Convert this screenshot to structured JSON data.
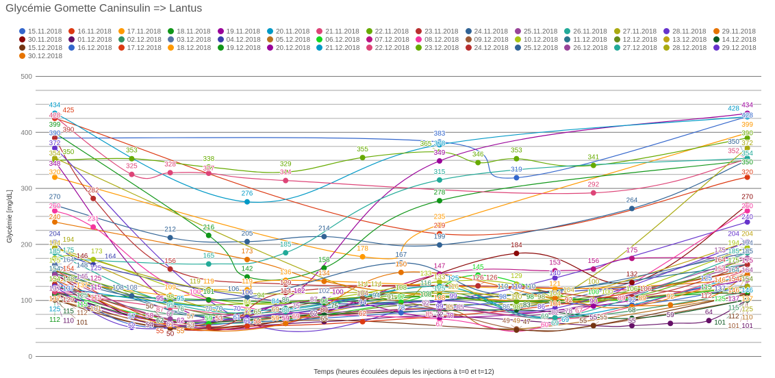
{
  "title": "Glycémie Gomette Caninsulin => Lantus",
  "chart_data": {
    "type": "line",
    "title": "Glycémie Gomette Caninsulin => Lantus",
    "xlabel": "Temps (heures écoulées depuis les injections à t=0 et t=12)",
    "ylabel": "Glycémie [mg/dL]",
    "ylim": [
      0,
      500
    ],
    "yticks": [
      0,
      100,
      200,
      300,
      400,
      500
    ],
    "grid": true,
    "legend": "top",
    "curve": "smooth",
    "data_labels": true,
    "x": [
      0,
      1,
      2,
      3,
      4,
      5,
      6,
      7,
      8,
      9,
      10,
      11,
      12,
      13,
      14,
      15,
      16,
      17,
      18
    ],
    "series": [
      {
        "name": "15.11.2018",
        "color": "#3366cc",
        "values": [
          390,
          null,
          null,
          null,
          null,
          null,
          null,
          null,
          null,
          null,
          383,
          null,
          319,
          null,
          null,
          null,
          null,
          null,
          428
        ]
      },
      {
        "name": "16.11.2018",
        "color": "#dc3912",
        "values": [
          425,
          null,
          null,
          null,
          null,
          null,
          null,
          null,
          null,
          null,
          219,
          null,
          null,
          null,
          null,
          null,
          null,
          null,
          320
        ]
      },
      {
        "name": "17.11.2018",
        "color": "#ff9900",
        "values": [
          320,
          null,
          null,
          null,
          null,
          null,
          null,
          null,
          178,
          null,
          235,
          null,
          null,
          null,
          null,
          null,
          null,
          null,
          399
        ]
      },
      {
        "name": "18.11.2018",
        "color": "#109618",
        "values": [
          399,
          null,
          null,
          null,
          216,
          142,
          null,
          158,
          null,
          null,
          278,
          null,
          null,
          null,
          null,
          null,
          null,
          null,
          350
        ]
      },
      {
        "name": "19.11.2018",
        "color": "#990099",
        "values": [
          348,
          null,
          null,
          95,
          null,
          null,
          102,
          null,
          null,
          null,
          349,
          null,
          null,
          null,
          null,
          null,
          null,
          null,
          434
        ]
      },
      {
        "name": "20.11.2018",
        "color": "#0099c6",
        "values": [
          434,
          null,
          null,
          null,
          null,
          276,
          null,
          null,
          null,
          null,
          378,
          null,
          null,
          null,
          null,
          null,
          null,
          null,
          428
        ]
      },
      {
        "name": "21.11.2018",
        "color": "#dd4477",
        "values": [
          428,
          null,
          325,
          328,
          327,
          null,
          314,
          null,
          null,
          null,
          null,
          null,
          null,
          null,
          292,
          null,
          null,
          null,
          352
        ]
      },
      {
        "name": "22.11.2018",
        "color": "#66aa00",
        "values": [
          350,
          null,
          353,
          null,
          338,
          null,
          329,
          null,
          355,
          null,
          365,
          346,
          353,
          null,
          341,
          null,
          null,
          null,
          390
        ]
      },
      {
        "name": "23.11.2018",
        "color": "#b82e2e",
        "values": [
          390,
          282,
          null,
          156,
          null,
          null,
          129,
          null,
          null,
          null,
          null,
          126,
          null,
          null,
          null,
          null,
          null,
          null,
          112
        ]
      },
      {
        "name": "24.11.2018",
        "color": "#316395",
        "values": [
          270,
          null,
          null,
          212,
          null,
          205,
          null,
          214,
          null,
          null,
          199,
          null,
          null,
          null,
          null,
          264,
          null,
          null,
          350
        ]
      },
      {
        "name": "25.11.2018",
        "color": "#994499",
        "values": [
          137,
          null,
          null,
          61,
          null,
          null,
          null,
          87,
          null,
          null,
          92,
          null,
          null,
          82,
          null,
          null,
          null,
          null,
          164
        ]
      },
      {
        "name": "26.11.2018",
        "color": "#22aa99",
        "values": [
          175,
          null,
          null,
          null,
          165,
          null,
          185,
          null,
          null,
          null,
          315,
          null,
          null,
          null,
          null,
          null,
          null,
          null,
          354
        ]
      },
      {
        "name": "27.11.2018",
        "color": "#aaaa11",
        "values": [
          354,
          null,
          null,
          null,
          null,
          null,
          null,
          null,
          114,
          null,
          133,
          null,
          null,
          104,
          null,
          null,
          null,
          null,
          372
        ]
      },
      {
        "name": "28.11.2018",
        "color": "#6633cc",
        "values": [
          372,
          null,
          null,
          null,
          null,
          61,
          null,
          null,
          null,
          null,
          99,
          null,
          null,
          140,
          null,
          null,
          null,
          null,
          240
        ]
      },
      {
        "name": "29.11.2018",
        "color": "#e67300",
        "values": [
          240,
          null,
          null,
          null,
          null,
          173,
          null,
          134,
          null,
          null,
          108,
          null,
          null,
          null,
          null,
          null,
          92,
          null,
          146
        ]
      },
      {
        "name": "30.11.2018",
        "color": "#8b0707",
        "values": [
          146,
          null,
          null,
          50,
          null,
          null,
          null,
          80,
          null,
          null,
          null,
          null,
          184,
          null,
          null,
          132,
          null,
          null,
          270
        ]
      },
      {
        "name": "01.12.2018",
        "color": "#651067",
        "values": [
          110,
          null,
          null,
          54,
          null,
          null,
          null,
          62,
          null,
          null,
          72,
          null,
          null,
          null,
          55,
          55,
          59,
          64,
          101
        ]
      },
      {
        "name": "02.12.2018",
        "color": "#329262",
        "values": [
          125,
          null,
          null,
          76,
          null,
          null,
          86,
          null,
          null,
          null,
          116,
          null,
          null,
          69,
          null,
          null,
          null,
          null,
          115
        ]
      },
      {
        "name": "03.12.2018",
        "color": "#5574a6",
        "values": [
          164,
          null,
          108,
          null,
          70,
          null,
          null,
          102,
          null,
          null,
          null,
          null,
          86,
          null,
          null,
          null,
          null,
          null,
          194
        ]
      },
      {
        "name": "04.12.2018",
        "color": "#3b3eac",
        "values": [
          204,
          164,
          null,
          null,
          null,
          106,
          null,
          null,
          94,
          null,
          null,
          null,
          110,
          null,
          null,
          null,
          null,
          null,
          137
        ]
      },
      {
        "name": "05.12.2018",
        "color": "#b77322",
        "values": [
          101,
          null,
          null,
          57,
          null,
          null,
          69,
          null,
          null,
          null,
          85,
          null,
          49,
          null,
          null,
          null,
          null,
          null,
          110
        ]
      },
      {
        "name": "06.12.2018",
        "color": "#16d620",
        "values": [
          115,
          null,
          null,
          null,
          59,
          null,
          null,
          null,
          null,
          97,
          null,
          145,
          null,
          null,
          100,
          null,
          null,
          null,
          125
        ]
      },
      {
        "name": "07.12.2018",
        "color": "#b91383",
        "values": [
          125,
          null,
          null,
          58,
          null,
          null,
          59,
          null,
          null,
          null,
          147,
          null,
          null,
          153,
          156,
          175,
          null,
          null,
          175
        ]
      },
      {
        "name": "08.12.2018",
        "color": "#f4359e",
        "values": [
          260,
          231,
          null,
          null,
          100,
          null,
          null,
          null,
          null,
          null,
          67,
          null,
          null,
          60,
          null,
          null,
          null,
          null,
          260
        ]
      },
      {
        "name": "09.12.2018",
        "color": "#9c5935",
        "values": [
          112,
          null,
          null,
          53,
          null,
          null,
          null,
          null,
          104,
          null,
          null,
          null,
          49,
          null,
          55,
          null,
          null,
          null,
          101
        ]
      },
      {
        "name": "10.12.2018",
        "color": "#a9c413",
        "values": [
          175,
          173,
          null,
          null,
          null,
          94,
          null,
          null,
          null,
          null,
          133,
          null,
          129,
          null,
          100,
          null,
          null,
          null,
          194
        ]
      },
      {
        "name": "11.12.2018",
        "color": "#2a778d",
        "values": [
          154,
          null,
          null,
          null,
          70,
          null,
          null,
          null,
          94,
          null,
          null,
          null,
          110,
          null,
          null,
          null,
          null,
          null,
          164
        ]
      },
      {
        "name": "12.12.2018",
        "color": "#668d1c",
        "values": [
          148,
          null,
          null,
          null,
          null,
          65,
          null,
          null,
          null,
          91,
          null,
          null,
          null,
          98,
          null,
          null,
          null,
          null,
          154
        ]
      },
      {
        "name": "13.12.2018",
        "color": "#bea413",
        "values": [
          194,
          null,
          null,
          null,
          null,
          72,
          null,
          null,
          null,
          null,
          116,
          null,
          null,
          104,
          null,
          null,
          null,
          null,
          204
        ]
      },
      {
        "name": "14.12.2018",
        "color": "#0c5922",
        "values": [
          115,
          null,
          null,
          62,
          null,
          null,
          null,
          75,
          null,
          null,
          null,
          null,
          83,
          null,
          null,
          68,
          null,
          null,
          101
        ]
      },
      {
        "name": "15.12.2018",
        "color": "#743411",
        "values": [
          101,
          null,
          null,
          50,
          null,
          null,
          null,
          65,
          null,
          null,
          null,
          null,
          47,
          null,
          55,
          null,
          null,
          null,
          112
        ]
      },
      {
        "name": "16.12.2018",
        "color": "#3366cc",
        "values": [
          137,
          null,
          57,
          null,
          null,
          61,
          null,
          null,
          null,
          78,
          null,
          null,
          98,
          null,
          null,
          92,
          null,
          null,
          125
        ]
      },
      {
        "name": "17.12.2018",
        "color": "#dc3912",
        "values": [
          154,
          null,
          null,
          55,
          null,
          54,
          null,
          null,
          62,
          null,
          null,
          null,
          null,
          92,
          null,
          null,
          null,
          null,
          154
        ]
      },
      {
        "name": "18.12.2018",
        "color": "#ff9900",
        "values": [
          137,
          null,
          null,
          109,
          119,
          119,
          136,
          null,
          null,
          null,
          null,
          null,
          null,
          121,
          null,
          null,
          null,
          null,
          137
        ]
      },
      {
        "name": "19.12.2018",
        "color": "#109618",
        "values": [
          112,
          null,
          null,
          null,
          101,
          null,
          null,
          96,
          null,
          null,
          108,
          null,
          98,
          null,
          null,
          null,
          null,
          null,
          115
        ]
      },
      {
        "name": "20.12.2018",
        "color": "#990099",
        "values": [
          115,
          null,
          null,
          62,
          null,
          null,
          null,
          100,
          null,
          null,
          70,
          null,
          null,
          null,
          90,
          null,
          null,
          null,
          137
        ]
      },
      {
        "name": "21.12.2018",
        "color": "#0099c6",
        "values": [
          125,
          null,
          null,
          95,
          null,
          null,
          84,
          null,
          null,
          null,
          125,
          null,
          null,
          69,
          null,
          null,
          null,
          null,
          146
        ]
      },
      {
        "name": "22.12.2018",
        "color": "#dd4477",
        "values": [
          115,
          null,
          null,
          87,
          null,
          null,
          69,
          null,
          null,
          null,
          85,
          null,
          null,
          67,
          null,
          89,
          null,
          null,
          154
        ]
      },
      {
        "name": "23.12.2018",
        "color": "#66aa00",
        "values": [
          154,
          null,
          null,
          98,
          null,
          94,
          null,
          null,
          null,
          108,
          null,
          null,
          98,
          null,
          null,
          106,
          null,
          null,
          175
        ]
      },
      {
        "name": "24.12.2018",
        "color": "#b82e2e",
        "values": [
          129,
          null,
          null,
          null,
          53,
          null,
          114,
          null,
          null,
          null,
          null,
          126,
          null,
          null,
          null,
          106,
          null,
          null,
          164
        ]
      },
      {
        "name": "25.12.2018",
        "color": "#316395",
        "values": [
          148,
          null,
          108,
          null,
          null,
          106,
          null,
          null,
          null,
          167,
          null,
          null,
          110,
          null,
          null,
          null,
          null,
          null,
          185
        ]
      },
      {
        "name": "26.12.2018",
        "color": "#994499",
        "values": [
          146,
          null,
          null,
          67,
          null,
          null,
          75,
          null,
          null,
          null,
          85,
          null,
          null,
          78,
          null,
          null,
          null,
          null,
          175
        ]
      },
      {
        "name": "27.12.2018",
        "color": "#22aa99",
        "values": [
          185,
          null,
          null,
          95,
          null,
          null,
          80,
          null,
          null,
          null,
          125,
          null,
          null,
          69,
          null,
          null,
          null,
          null,
          185
        ]
      },
      {
        "name": "28.12.2018",
        "color": "#aaaa11",
        "values": [
          194,
          null,
          null,
          null,
          119,
          null,
          null,
          null,
          114,
          null,
          null,
          null,
          110,
          null,
          100,
          null,
          null,
          null,
          125
        ]
      },
      {
        "name": "29.12.2018",
        "color": "#6633cc",
        "values": [
          125,
          null,
          52,
          null,
          null,
          70,
          null,
          null,
          null,
          null,
          99,
          null,
          null,
          86,
          null,
          null,
          null,
          null,
          204
        ]
      },
      {
        "name": "30.12.2018",
        "color": "#e67300",
        "values": [
          137,
          null,
          null,
          55,
          null,
          null,
          59,
          null,
          null,
          150,
          null,
          null,
          null,
          104,
          null,
          89,
          null,
          null,
          146
        ]
      }
    ]
  }
}
